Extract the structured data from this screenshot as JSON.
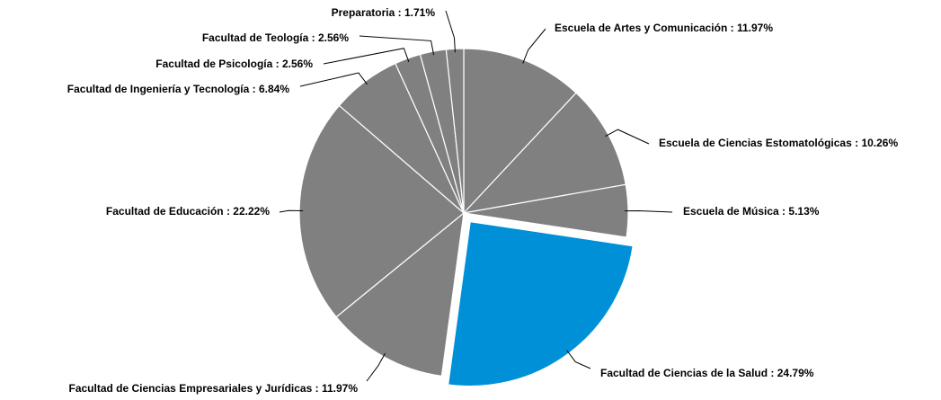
{
  "chart_data": {
    "type": "pie",
    "label_separator": " : ",
    "categories": [
      "Escuela de Artes y Comunicación",
      "Escuela de Ciencias Estomatológicas",
      "Escuela de Música",
      "Facultad de Ciencias de la Salud",
      "Facultad de Ciencias Empresariales y Jurídicas",
      "Facultad de Educación",
      "Facultad de Ingeniería y Tecnología",
      "Facultad de Psicología",
      "Facultad de Teología",
      "Preparatoria"
    ],
    "values": [
      11.97,
      10.26,
      5.13,
      24.79,
      11.97,
      22.22,
      6.84,
      2.56,
      2.56,
      1.71
    ],
    "value_labels": [
      "11.97%",
      "10.26%",
      "5.13%",
      "24.79%",
      "11.97%",
      "22.22%",
      "6.84%",
      "2.56%",
      "2.56%",
      "1.71%"
    ],
    "colors": [
      "#808080",
      "#808080",
      "#808080",
      "#0090d8",
      "#808080",
      "#808080",
      "#808080",
      "#808080",
      "#808080",
      "#808080"
    ],
    "exploded": [
      3
    ]
  }
}
